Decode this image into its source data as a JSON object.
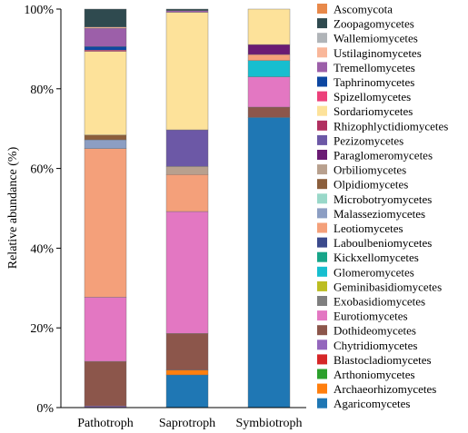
{
  "chart_data": {
    "type": "bar",
    "stacked": true,
    "xlabel": "",
    "ylabel": "Relative abundance (%)",
    "ylim": [
      0,
      100
    ],
    "yticks": [
      "0%",
      "20%",
      "40%",
      "60%",
      "80%",
      "100%"
    ],
    "categories": [
      "Pathotroph",
      "Saprotroph",
      "Symbiotroph"
    ],
    "legend_position": "right",
    "series": [
      {
        "name": "Agaricomycetes",
        "color": "#1f77b4",
        "values": [
          0.0,
          8.2,
          72.8
        ]
      },
      {
        "name": "Archaeorhizomycetes",
        "color": "#ff7f0e",
        "values": [
          0.0,
          1.2,
          0.0
        ]
      },
      {
        "name": "Arthoniomycetes",
        "color": "#2ca02c",
        "values": [
          0.0,
          0.0,
          0.0
        ]
      },
      {
        "name": "Blastocladiomycetes",
        "color": "#d62728",
        "values": [
          0.0,
          0.0,
          0.0
        ]
      },
      {
        "name": "Chytridiomycetes",
        "color": "#9467bd",
        "values": [
          0.4,
          0.0,
          0.0
        ]
      },
      {
        "name": "Dothideomycetes",
        "color": "#8c564b",
        "values": [
          11.2,
          9.2,
          2.6
        ]
      },
      {
        "name": "Eurotiomycetes",
        "color": "#e377c2",
        "values": [
          16.1,
          30.6,
          7.6
        ]
      },
      {
        "name": "Exobasidiomycetes",
        "color": "#7f7f7f",
        "values": [
          0.0,
          0.0,
          0.0
        ]
      },
      {
        "name": "Geminibasidiomycetes",
        "color": "#bcbd22",
        "values": [
          0.0,
          0.0,
          0.0
        ]
      },
      {
        "name": "Glomeromycetes",
        "color": "#17becf",
        "values": [
          0.0,
          0.0,
          4.1
        ]
      },
      {
        "name": "Kickxellomycetes",
        "color": "#17a589",
        "values": [
          0.0,
          0.0,
          0.0
        ]
      },
      {
        "name": "Laboulbeniomycetes",
        "color": "#3b4a8c",
        "values": [
          0.0,
          0.0,
          0.0
        ]
      },
      {
        "name": "Leotiomycetes",
        "color": "#f4a07a",
        "values": [
          37.3,
          9.3,
          1.5
        ]
      },
      {
        "name": "Malasseziomycetes",
        "color": "#8c9ec3",
        "values": [
          2.2,
          0.0,
          0.0
        ]
      },
      {
        "name": "Microbotryomycetes",
        "color": "#99d8c9",
        "values": [
          0.0,
          0.0,
          0.0
        ]
      },
      {
        "name": "Olpidiomycetes",
        "color": "#8b5e3c",
        "values": [
          1.2,
          0.0,
          0.0
        ]
      },
      {
        "name": "Orbiliomycetes",
        "color": "#b8a08e",
        "values": [
          0.0,
          2.0,
          0.0
        ]
      },
      {
        "name": "Paraglomeromycetes",
        "color": "#6a1b73",
        "values": [
          0.0,
          0.0,
          2.5
        ]
      },
      {
        "name": "Pezizomycetes",
        "color": "#6c58a6",
        "values": [
          0.0,
          9.2,
          0.0
        ]
      },
      {
        "name": "Rhizophlyctidiomycetes",
        "color": "#b03060",
        "values": [
          0.0,
          0.0,
          0.0
        ]
      },
      {
        "name": "Sordariomycetes",
        "color": "#fde29a",
        "values": [
          21.0,
          29.5,
          8.9
        ]
      },
      {
        "name": "Spizellomycetes",
        "color": "#ec407a",
        "values": [
          0.3,
          0.0,
          0.0
        ]
      },
      {
        "name": "Taphrinomycetes",
        "color": "#0d47a1",
        "values": [
          0.9,
          0.0,
          0.0
        ]
      },
      {
        "name": "Tremellomycetes",
        "color": "#9c5fa9",
        "values": [
          4.6,
          0.4,
          0.0
        ]
      },
      {
        "name": "Ustilaginomycetes",
        "color": "#f9b79a",
        "values": [
          0.3,
          0.0,
          0.0
        ]
      },
      {
        "name": "Wallemiomycetes",
        "color": "#b0b4b8",
        "values": [
          0.0,
          0.0,
          0.0
        ]
      },
      {
        "name": "Zoopagomycetes",
        "color": "#2f4a4f",
        "values": [
          4.5,
          0.4,
          0.0
        ]
      },
      {
        "name": "Ascomycota",
        "color": "#e8894a",
        "values": [
          0.0,
          0.0,
          0.0
        ]
      }
    ]
  }
}
